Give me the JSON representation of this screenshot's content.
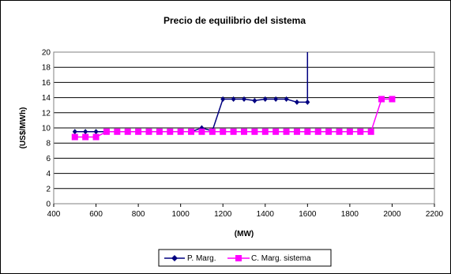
{
  "chart_data": {
    "type": "line",
    "title": "Precio de equilibrio del sistema",
    "xlabel": "(MW)",
    "ylabel": "(US$/MWh)",
    "xlim": [
      400,
      2200
    ],
    "ylim": [
      0,
      20
    ],
    "xticks": [
      400,
      600,
      800,
      1000,
      1200,
      1400,
      1600,
      1800,
      2000,
      2200
    ],
    "yticks": [
      0,
      2,
      4,
      6,
      8,
      10,
      12,
      14,
      16,
      18,
      20
    ],
    "grid": "horizontal",
    "legend_position": "bottom",
    "series": [
      {
        "name": "P. Marg.",
        "color": "#000080",
        "marker": "diamond",
        "x": [
          500,
          550,
          600,
          650,
          700,
          750,
          800,
          850,
          900,
          950,
          1000,
          1050,
          1100,
          1150,
          1200,
          1250,
          1300,
          1350,
          1400,
          1450,
          1500,
          1550,
          1600,
          1600
        ],
        "y": [
          9.5,
          9.5,
          9.5,
          9.5,
          9.5,
          9.5,
          9.5,
          9.5,
          9.5,
          9.5,
          9.5,
          9.5,
          10.0,
          9.6,
          13.8,
          13.8,
          13.8,
          13.6,
          13.8,
          13.8,
          13.8,
          13.4,
          13.4,
          20.0
        ]
      },
      {
        "name": "C. Marg. sistema",
        "color": "#ff00ff",
        "marker": "square",
        "x": [
          500,
          550,
          600,
          650,
          700,
          750,
          800,
          850,
          900,
          950,
          1000,
          1050,
          1100,
          1150,
          1200,
          1250,
          1300,
          1350,
          1400,
          1450,
          1500,
          1550,
          1600,
          1650,
          1700,
          1750,
          1800,
          1850,
          1900,
          1950,
          2000
        ],
        "y": [
          8.8,
          8.8,
          8.8,
          9.5,
          9.5,
          9.5,
          9.5,
          9.5,
          9.5,
          9.5,
          9.5,
          9.5,
          9.5,
          9.5,
          9.5,
          9.5,
          9.5,
          9.5,
          9.5,
          9.5,
          9.5,
          9.5,
          9.5,
          9.5,
          9.5,
          9.5,
          9.5,
          9.5,
          9.5,
          13.8,
          13.8
        ]
      }
    ]
  }
}
